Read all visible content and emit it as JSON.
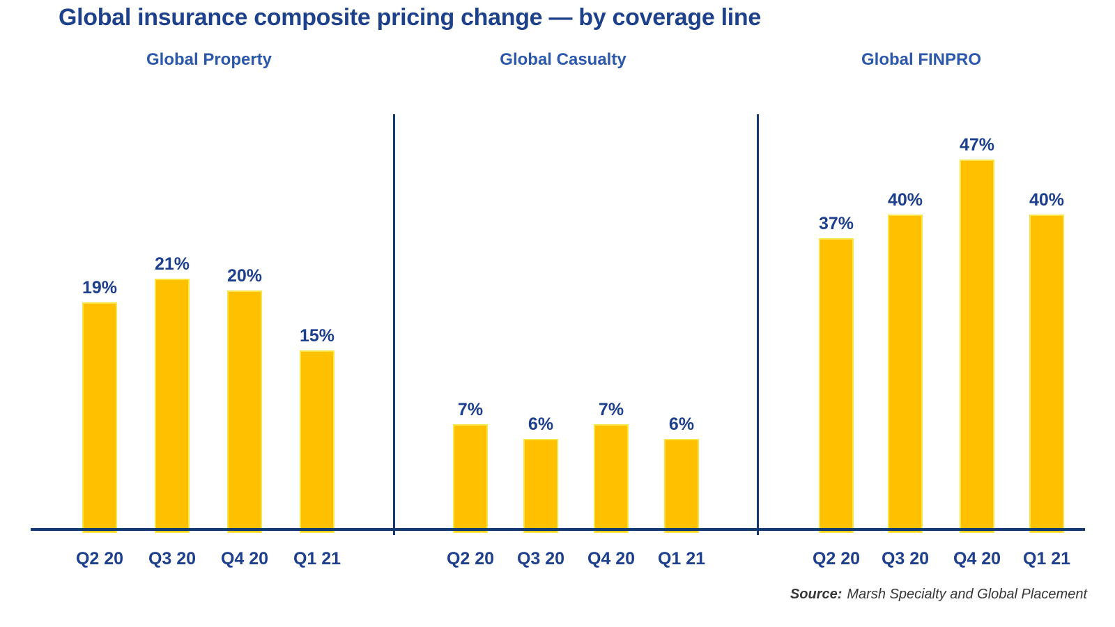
{
  "page": {
    "title": "Global insurance composite pricing change — by coverage line",
    "source_prefix": "Source:",
    "source_text": "Marsh Specialty and Global Placement"
  },
  "colors": {
    "title_navy": "#1E418C",
    "header_blue": "#2B58AB",
    "label_navy": "#1D3F8D",
    "axis_navy": "#133A70",
    "bar_fill": "#FFC000",
    "bar_stroke": "#F9E54A",
    "source_gray": "#363636"
  },
  "chart_data": {
    "type": "bar",
    "title": "Global insurance composite pricing change — by coverage line",
    "categories": [
      "Q2 20",
      "Q3 20",
      "Q4 20",
      "Q1 21"
    ],
    "unit": "%",
    "grid": false,
    "legend": false,
    "y_axis_visible": false,
    "data_labels": true,
    "source": "Source: Marsh Specialty and Global Placement",
    "panels": [
      {
        "title": "Global Property",
        "values": [
          19,
          21,
          20,
          15
        ],
        "ylim": [
          0,
          35
        ]
      },
      {
        "title": "Global Casualty",
        "values": [
          7,
          6,
          7,
          6
        ],
        "ylim": [
          0,
          28
        ]
      },
      {
        "title": "Global FINPRO",
        "values": [
          37,
          40,
          47,
          40
        ],
        "ylim": [
          0,
          53
        ]
      }
    ]
  }
}
